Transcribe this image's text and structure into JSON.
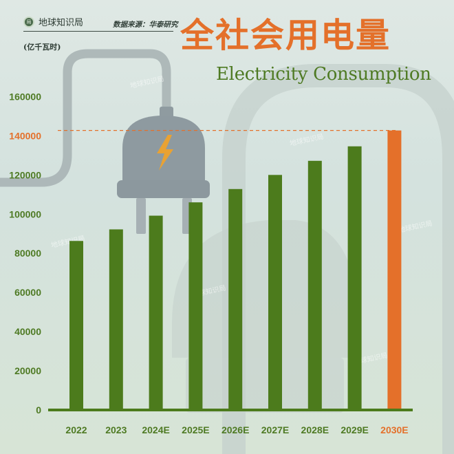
{
  "brand": {
    "name": "地球知识局",
    "logo_glyph": "局"
  },
  "source": "数据来源：华泰研究",
  "watermark": "地球知识局",
  "colors": {
    "bar": "#4c7b1c",
    "highlight": "#e4702a",
    "axis_label": "#4e7a23",
    "background": "#dae5e0"
  },
  "chart_data": {
    "type": "bar",
    "title": "全社会用电量",
    "subtitle": "Electricity Consumption",
    "ylabel": "(亿千瓦时)",
    "xlabel": "",
    "categories": [
      "2022",
      "2023",
      "2024E",
      "2025E",
      "2026E",
      "2027E",
      "2028E",
      "2029E",
      "2030E"
    ],
    "values": [
      86300,
      92200,
      99200,
      106000,
      112800,
      120000,
      127200,
      134600,
      142700
    ],
    "highlight_index": 8,
    "reference_line": 142700,
    "ylim": [
      0,
      160000
    ],
    "yticks": [
      0,
      20000,
      40000,
      60000,
      80000,
      100000,
      120000,
      140000,
      160000
    ],
    "highlight_tick": 140000,
    "grid": false,
    "legend": "none"
  }
}
